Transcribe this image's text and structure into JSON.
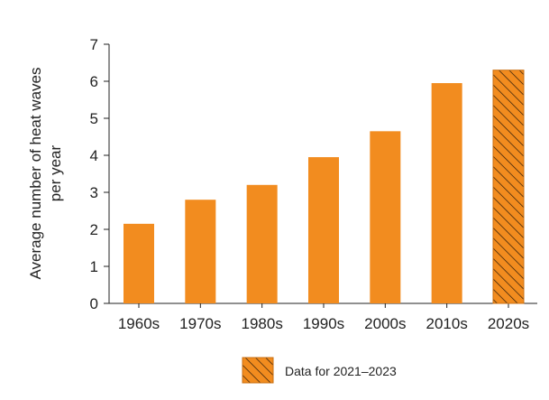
{
  "chart_data": {
    "type": "bar",
    "categories": [
      "1960s",
      "1970s",
      "1980s",
      "1990s",
      "2000s",
      "2010s",
      "2020s"
    ],
    "values": [
      2.15,
      2.8,
      3.2,
      3.95,
      4.65,
      5.95,
      6.3
    ],
    "hatched_categories": [
      "2020s"
    ],
    "title": "",
    "xlabel": "",
    "ylabel": [
      "Average number of heat waves",
      "per year"
    ],
    "ylim": [
      0,
      7
    ],
    "yticks": [
      0,
      1,
      2,
      3,
      4,
      5,
      6,
      7
    ],
    "grid": false,
    "legend": {
      "position": "bottom-center",
      "entries": [
        {
          "label": "Data for 2021–2023",
          "style": "hatched"
        }
      ]
    },
    "colors": {
      "bar": "#f28c1f",
      "hatch": "#2b1a0a",
      "axis": "#222222"
    }
  }
}
